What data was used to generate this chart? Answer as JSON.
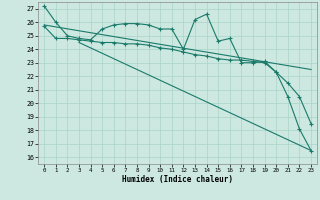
{
  "xlabel": "Humidex (Indice chaleur)",
  "background_color": "#cce8e0",
  "grid_color": "#aad4c8",
  "line_color": "#1a7a6a",
  "xlim": [
    -0.5,
    23.5
  ],
  "ylim": [
    15.5,
    27.5
  ],
  "yticks": [
    16,
    17,
    18,
    19,
    20,
    21,
    22,
    23,
    24,
    25,
    26,
    27
  ],
  "xticks": [
    0,
    1,
    2,
    3,
    4,
    5,
    6,
    7,
    8,
    9,
    10,
    11,
    12,
    13,
    14,
    15,
    16,
    17,
    18,
    19,
    20,
    21,
    22,
    23
  ],
  "series1_x": [
    0,
    1,
    2,
    3,
    4,
    5,
    6,
    7,
    8,
    9,
    10,
    11,
    12,
    13,
    14,
    15,
    16,
    17,
    18,
    19,
    20,
    21,
    22,
    23
  ],
  "series1_y": [
    27.2,
    26.0,
    25.0,
    24.8,
    24.7,
    25.5,
    25.8,
    25.9,
    25.9,
    25.8,
    25.5,
    25.5,
    24.0,
    26.2,
    26.6,
    24.6,
    24.8,
    23.0,
    23.0,
    23.1,
    22.3,
    20.5,
    18.1,
    16.5
  ],
  "series2_x": [
    0,
    1,
    2,
    3,
    4,
    5,
    6,
    7,
    8,
    9,
    10,
    11,
    12,
    13,
    14,
    15,
    16,
    17,
    18,
    19,
    20,
    21,
    22,
    23
  ],
  "series2_y": [
    25.7,
    24.8,
    24.8,
    24.7,
    24.6,
    24.5,
    24.5,
    24.4,
    24.4,
    24.3,
    24.1,
    24.0,
    23.8,
    23.6,
    23.5,
    23.3,
    23.2,
    23.2,
    23.1,
    23.0,
    22.3,
    21.5,
    20.5,
    18.5
  ],
  "series3_x": [
    0,
    23
  ],
  "series3_y": [
    25.8,
    22.5
  ],
  "series4_x": [
    3,
    23
  ],
  "series4_y": [
    24.5,
    16.5
  ]
}
